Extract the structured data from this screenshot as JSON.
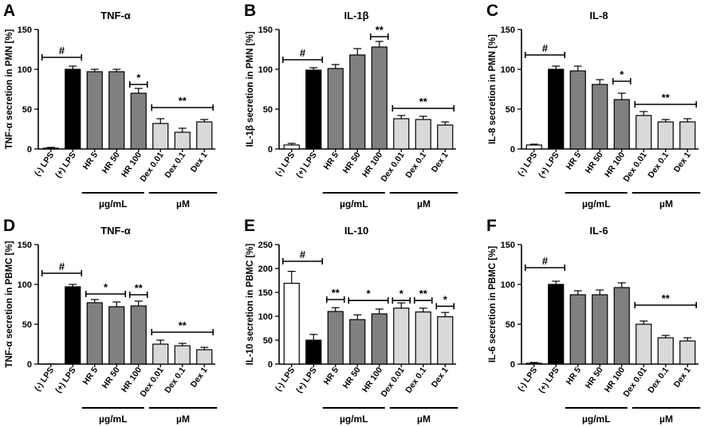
{
  "colors": {
    "neg": "#ffffff",
    "pos": "#000000",
    "hr": "#808080",
    "dex": "#d9d9d9",
    "axis": "#000000"
  },
  "chart_data": [
    {
      "panel": "A",
      "type": "bar",
      "title": "TNF-α",
      "ylabel": "TNF-α secretion in PMN [%]",
      "ylim": [
        0,
        150
      ],
      "yticks": [
        0,
        50,
        100,
        150
      ],
      "categories": [
        "(-) LPS",
        "(+) LPS",
        "HR 5",
        "HR 50",
        "HR 100",
        "Dex 0.01",
        "Dex 0.1",
        "Dex 1"
      ],
      "values": [
        1,
        100,
        97,
        97,
        70,
        32,
        21,
        34
      ],
      "errors": [
        1,
        4,
        3,
        3,
        6,
        6,
        5,
        3
      ],
      "groups": [
        "µg/mL",
        "µM"
      ],
      "annotations": [
        {
          "label": "#",
          "from": 0,
          "to": 1,
          "y": 115
        },
        {
          "label": "*",
          "from": 4,
          "to": 4,
          "y": 81
        },
        {
          "label": "**",
          "from": 5,
          "to": 7,
          "y": 52
        }
      ]
    },
    {
      "panel": "B",
      "type": "bar",
      "title": "IL-1β",
      "ylabel": "IL-1β secretion in PMN [%]",
      "ylim": [
        0,
        150
      ],
      "yticks": [
        0,
        50,
        100,
        150
      ],
      "categories": [
        "(-) LPS",
        "(+) LPS",
        "HR 5",
        "HR 50",
        "HR 100",
        "Dex 0.01",
        "Dex 0.1",
        "Dex 1"
      ],
      "values": [
        5,
        99,
        101,
        118,
        128,
        38,
        37,
        30
      ],
      "errors": [
        2,
        3,
        5,
        8,
        7,
        4,
        4,
        4
      ],
      "groups": [
        "µg/mL",
        "µM"
      ],
      "annotations": [
        {
          "label": "#",
          "from": 0,
          "to": 1,
          "y": 112
        },
        {
          "label": "**",
          "from": 4,
          "to": 4,
          "y": 141
        },
        {
          "label": "**",
          "from": 5,
          "to": 7,
          "y": 51
        }
      ]
    },
    {
      "panel": "C",
      "type": "bar",
      "title": "IL-8",
      "ylabel": "IL-8 secretion in PMN [%]",
      "ylim": [
        0,
        150
      ],
      "yticks": [
        0,
        50,
        100,
        150
      ],
      "categories": [
        "(-) LPS",
        "(+) LPS",
        "HR 5",
        "HR 50",
        "HR 100",
        "Dex 0.01",
        "Dex 0.1",
        "Dex 1"
      ],
      "values": [
        5,
        100,
        98,
        81,
        62,
        42,
        34,
        34
      ],
      "errors": [
        1,
        4,
        6,
        6,
        8,
        5,
        3,
        4
      ],
      "groups": [
        "µg/mL",
        "µM"
      ],
      "annotations": [
        {
          "label": "#",
          "from": 0,
          "to": 1,
          "y": 118
        },
        {
          "label": "*",
          "from": 4,
          "to": 4,
          "y": 85
        },
        {
          "label": "**",
          "from": 5,
          "to": 7,
          "y": 56
        }
      ]
    },
    {
      "panel": "D",
      "type": "bar",
      "title": "TNF-α",
      "ylabel": "TNF-α secretion in PBMC [%]",
      "ylim": [
        0,
        150
      ],
      "yticks": [
        0,
        50,
        100,
        150
      ],
      "categories": [
        "(-) LPS",
        "(+) LPS",
        "HR 5",
        "HR 50",
        "HR 100",
        "Dex 0.01",
        "Dex 0.1",
        "Dex 1"
      ],
      "values": [
        0,
        97,
        77,
        72,
        73,
        25,
        23,
        18
      ],
      "errors": [
        0,
        3,
        4,
        6,
        6,
        5,
        3,
        3
      ],
      "groups": [
        "µg/mL",
        "µM"
      ],
      "annotations": [
        {
          "label": "#",
          "from": 0,
          "to": 1,
          "y": 114
        },
        {
          "label": "*",
          "from": 2,
          "to": 3,
          "y": 88
        },
        {
          "label": "**",
          "from": 4,
          "to": 4,
          "y": 87
        },
        {
          "label": "**",
          "from": 5,
          "to": 7,
          "y": 40
        }
      ]
    },
    {
      "panel": "E",
      "type": "bar",
      "title": "IL-10",
      "ylabel": "IL-10 secretion in PBMC [%]",
      "ylim": [
        0,
        250
      ],
      "yticks": [
        0,
        50,
        100,
        150,
        200,
        250
      ],
      "categories": [
        "(-) LPS",
        "(+) LPS",
        "HR 5",
        "HR 50",
        "HR 100",
        "Dex 0.01",
        "Dex 0.1",
        "Dex 1"
      ],
      "values": [
        169,
        50,
        110,
        93,
        105,
        117,
        109,
        99
      ],
      "errors": [
        25,
        12,
        8,
        10,
        10,
        11,
        8,
        9
      ],
      "groups": [
        "µg/mL",
        "µM"
      ],
      "annotations": [
        {
          "label": "#",
          "from": 0,
          "to": 1,
          "y": 215
        },
        {
          "label": "**",
          "from": 2,
          "to": 2,
          "y": 135
        },
        {
          "label": "*",
          "from": 3,
          "to": 4,
          "y": 133
        },
        {
          "label": "*",
          "from": 5,
          "to": 5,
          "y": 133
        },
        {
          "label": "**",
          "from": 6,
          "to": 6,
          "y": 133
        },
        {
          "label": "*",
          "from": 7,
          "to": 7,
          "y": 121
        }
      ]
    },
    {
      "panel": "F",
      "type": "bar",
      "title": "IL-6",
      "ylabel": "IL-6 secretion in PBMC [%]",
      "ylim": [
        0,
        150
      ],
      "yticks": [
        0,
        50,
        100,
        150
      ],
      "categories": [
        "(-) LPS",
        "(+) LPS",
        "HR 5",
        "HR 50",
        "HR 100",
        "Dex 0.01",
        "Dex 0.1",
        "Dex 1"
      ],
      "values": [
        1,
        100,
        87,
        87,
        96,
        50,
        33,
        29
      ],
      "errors": [
        1,
        4,
        5,
        6,
        6,
        4,
        3,
        4
      ],
      "groups": [
        "µg/mL",
        "µM"
      ],
      "annotations": [
        {
          "label": "#",
          "from": 0,
          "to": 1,
          "y": 121
        },
        {
          "label": "**",
          "from": 5,
          "to": 7,
          "y": 74
        }
      ]
    }
  ]
}
